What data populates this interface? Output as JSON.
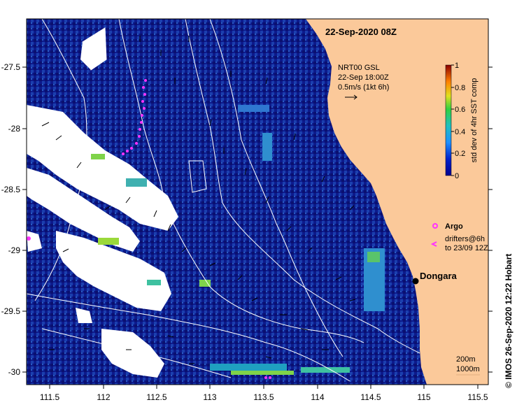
{
  "title": "22-Sep-2020 08Z",
  "product": {
    "line1": "NRT00 GSL",
    "line2": "22-Sep 18:00Z",
    "line3": "0.5m/s (1kt 6h)"
  },
  "colorbar": {
    "label": "std dev of 4hr SST comp",
    "ticks": [
      "0",
      "0.2",
      "0.4",
      "0.6",
      "0.8",
      "1"
    ]
  },
  "legend": {
    "argo": "Argo",
    "drifters_line1": "drifters@6h",
    "drifters_line2": "to 23/09 12Z"
  },
  "place": {
    "name": "Dongara"
  },
  "contours": {
    "depth1": "200m",
    "depth2": "1000m"
  },
  "credit": "© IMOS 26-Sep-2020 12:22 Hobart",
  "axes": {
    "x_ticks": [
      "111.5",
      "112",
      "112.5",
      "113",
      "113.5",
      "114",
      "114.5",
      "115",
      "115.5"
    ],
    "y_ticks": [
      "-27.5",
      "-28",
      "-28.5",
      "-29",
      "-29.5",
      "-30"
    ]
  },
  "colors": {
    "ocean": "#0d1a8c",
    "land": "#fbc99a",
    "cloud": "#ffffff",
    "argo": "#ff33ff",
    "drifter": "#ff33ff"
  }
}
